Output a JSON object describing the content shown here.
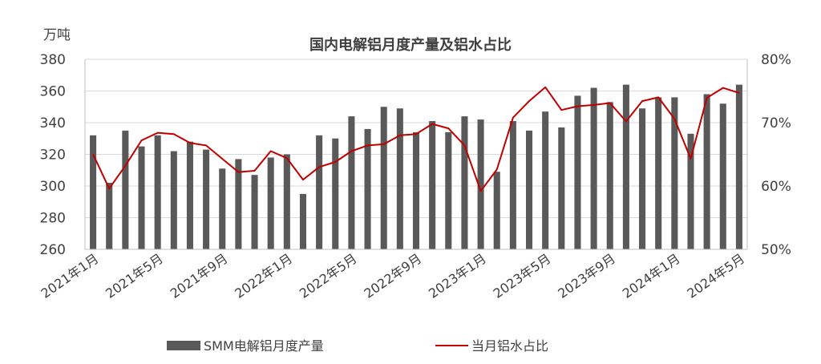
{
  "chart_data": {
    "type": "bar",
    "title": "国内电解铝月度产量及铝水占比",
    "left_unit": "万吨",
    "categories": [
      "2021年1月",
      "2021年2月",
      "2021年3月",
      "2021年4月",
      "2021年5月",
      "2021年6月",
      "2021年7月",
      "2021年8月",
      "2021年9月",
      "2021年10月",
      "2021年11月",
      "2021年12月",
      "2022年1月",
      "2022年2月",
      "2022年3月",
      "2022年4月",
      "2022年5月",
      "2022年6月",
      "2022年7月",
      "2022年8月",
      "2022年9月",
      "2022年10月",
      "2022年11月",
      "2022年12月",
      "2023年1月",
      "2023年2月",
      "2023年3月",
      "2023年4月",
      "2023年5月",
      "2023年6月",
      "2023年7月",
      "2023年8月",
      "2023年9月",
      "2023年10月",
      "2023年11月",
      "2023年12月",
      "2024年1月",
      "2024年2月",
      "2024年3月",
      "2024年4月",
      "2024年5月"
    ],
    "x_tick_labels": [
      "2021年1月",
      "2021年5月",
      "2021年9月",
      "2022年1月",
      "2022年5月",
      "2022年9月",
      "2023年1月",
      "2023年5月",
      "2023年9月",
      "2024年1月",
      "2024年5月"
    ],
    "x_tick_indices": [
      0,
      4,
      8,
      12,
      16,
      20,
      24,
      28,
      32,
      36,
      40
    ],
    "ylim_left": [
      260,
      380
    ],
    "yticks_left": [
      "260",
      "280",
      "300",
      "320",
      "340",
      "360",
      "380"
    ],
    "ylim_right": [
      50,
      80
    ],
    "yticks_right": [
      "50%",
      "60%",
      "70%",
      "80%"
    ],
    "series": [
      {
        "name": "SMM电解铝月度产量",
        "type": "bar",
        "axis": "left",
        "color": "#595959",
        "values": [
          332,
          302,
          335,
          325,
          332,
          322,
          328,
          323,
          311,
          317,
          307,
          318,
          320,
          295,
          332,
          330,
          344,
          336,
          350,
          349,
          334,
          341,
          334,
          344,
          342,
          309,
          341,
          335,
          347,
          337,
          357,
          362,
          353,
          364,
          349,
          356,
          356,
          333,
          358,
          352,
          364
        ]
      },
      {
        "name": "当月铝水占比",
        "type": "line",
        "axis": "right",
        "color": "#c00000",
        "values": [
          65.0,
          59.6,
          63.2,
          67.2,
          68.4,
          68.2,
          66.8,
          66.4,
          64.3,
          62.2,
          62.4,
          65.5,
          64.4,
          61.0,
          63.0,
          63.8,
          65.5,
          66.4,
          66.6,
          68.0,
          68.2,
          69.8,
          69.1,
          66.4,
          59.2,
          62.6,
          70.8,
          73.4,
          75.6,
          72.0,
          72.6,
          72.8,
          73.1,
          70.2,
          73.4,
          74.0,
          70.6,
          64.3,
          73.9,
          75.5,
          74.7
        ]
      }
    ],
    "legend": {
      "position": "bottom",
      "items": [
        {
          "label": "SMM电解铝月度产量",
          "kind": "bar",
          "color": "#595959"
        },
        {
          "label": "当月铝水占比",
          "kind": "line",
          "color": "#c00000"
        }
      ]
    }
  }
}
